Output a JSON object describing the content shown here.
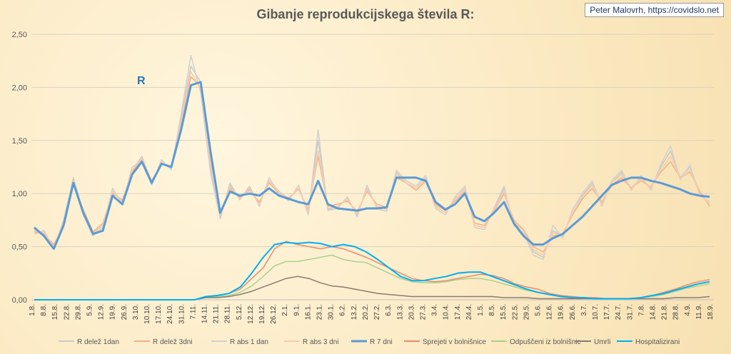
{
  "title": "Gibanje reprodukcijskega števila R:",
  "credit": "Peter Malovrh, https://covidslo.net",
  "chart_data": {
    "type": "line",
    "title": "Gibanje reprodukcijskega števila R:",
    "ylim": [
      0,
      2.5
    ],
    "y_ticks": [
      "0,00",
      "0,50",
      "1,00",
      "1,50",
      "2,00",
      "2,50"
    ],
    "x_ticks": [
      "1.8.",
      "8.8.",
      "15.8.",
      "22.8.",
      "29.8.",
      "5.9.",
      "12.9.",
      "19.9.",
      "26.9.",
      "3.10.",
      "10.10.",
      "17.10.",
      "24.10.",
      "31.10.",
      "7.11.",
      "14.11.",
      "21.11.",
      "28.11.",
      "5.12.",
      "12.12.",
      "19.12.",
      "26.12.",
      "2.1.",
      "9.1.",
      "16.1.",
      "23.1.",
      "30.1.",
      "6.2.",
      "13.2.",
      "20.2.",
      "27.2.",
      "6.3.",
      "13.3.",
      "20.3.",
      "27.3.",
      "3.4.",
      "10.4.",
      "17.4.",
      "24.4.",
      "1.5.",
      "8.5.",
      "15.5.",
      "22.5.",
      "29.5.",
      "5.6.",
      "12.6.",
      "19.6.",
      "26.6.",
      "3.7.",
      "10.7.",
      "17.7.",
      "24.7.",
      "31.7.",
      "7.8.",
      "14.8.",
      "21.8.",
      "28.8.",
      "4.9.",
      "11.9.",
      "18.9."
    ],
    "annotation": "R",
    "grid": true,
    "legend_position": "bottom",
    "series": [
      {
        "name": "R delež 1dan",
        "color": "#c9c9c9",
        "values": [
          0.62,
          0.65,
          0.48,
          0.75,
          1.15,
          0.82,
          0.62,
          0.7,
          1.02,
          0.92,
          1.22,
          1.35,
          1.1,
          1.3,
          1.25,
          1.72,
          2.2,
          2.05,
          1.25,
          0.78,
          1.08,
          0.95,
          1.05,
          0.9,
          1.12,
          1.02,
          0.95,
          1.05,
          0.82,
          1.5,
          0.85,
          0.88,
          0.95,
          0.8,
          1.05,
          0.88,
          0.85,
          1.2,
          1.1,
          1.05,
          1.15,
          0.88,
          0.82,
          0.95,
          1.05,
          0.7,
          0.68,
          0.85,
          1.05,
          0.72,
          0.65,
          0.45,
          0.4,
          0.65,
          0.6,
          0.82,
          0.98,
          1.1,
          0.9,
          1.1,
          1.2,
          1.05,
          1.15,
          1.05,
          1.25,
          1.4,
          1.15,
          1.25,
          1.0,
          0.9
        ]
      },
      {
        "name": "R delež 3dni",
        "color": "#f4b183",
        "values": [
          0.64,
          0.62,
          0.52,
          0.7,
          1.1,
          0.85,
          0.64,
          0.72,
          1.0,
          0.94,
          1.2,
          1.32,
          1.12,
          1.28,
          1.26,
          1.65,
          2.1,
          2.0,
          1.3,
          0.82,
          1.05,
          0.96,
          1.03,
          0.92,
          1.1,
          1.0,
          0.96,
          1.04,
          0.85,
          1.35,
          0.88,
          0.9,
          0.93,
          0.83,
          1.02,
          0.9,
          0.87,
          1.15,
          1.1,
          1.03,
          1.12,
          0.9,
          0.84,
          0.93,
          1.02,
          0.72,
          0.7,
          0.84,
          1.0,
          0.75,
          0.66,
          0.5,
          0.45,
          0.6,
          0.62,
          0.8,
          0.95,
          1.05,
          0.92,
          1.08,
          1.15,
          1.05,
          1.12,
          1.06,
          1.2,
          1.3,
          1.15,
          1.2,
          1.02,
          0.88
        ]
      },
      {
        "name": "R abs 1 dan",
        "color": "#d0d0d0",
        "values": [
          0.66,
          0.6,
          0.5,
          0.72,
          1.12,
          0.8,
          0.6,
          0.68,
          1.05,
          0.9,
          1.25,
          1.3,
          1.08,
          1.32,
          1.22,
          1.75,
          2.3,
          1.95,
          1.2,
          0.76,
          1.1,
          0.94,
          1.07,
          0.88,
          1.15,
          1.0,
          0.93,
          1.08,
          0.8,
          1.6,
          0.84,
          0.86,
          0.97,
          0.78,
          1.08,
          0.86,
          0.83,
          1.22,
          1.12,
          1.07,
          1.17,
          0.86,
          0.8,
          0.97,
          1.07,
          0.68,
          0.66,
          0.87,
          1.07,
          0.7,
          0.63,
          0.42,
          0.38,
          0.7,
          0.58,
          0.85,
          1.0,
          1.12,
          0.88,
          1.12,
          1.22,
          1.03,
          1.17,
          1.03,
          1.27,
          1.45,
          1.13,
          1.27,
          0.98,
          0.92
        ]
      },
      {
        "name": "R abs 3 dni",
        "color": "#f8cbad",
        "values": [
          0.65,
          0.63,
          0.5,
          0.73,
          1.12,
          0.83,
          0.63,
          0.7,
          1.02,
          0.92,
          1.22,
          1.33,
          1.1,
          1.3,
          1.24,
          1.68,
          2.15,
          1.98,
          1.28,
          0.8,
          1.07,
          0.95,
          1.04,
          0.9,
          1.12,
          1.01,
          0.95,
          1.05,
          0.83,
          1.4,
          0.86,
          0.88,
          0.95,
          0.81,
          1.04,
          0.88,
          0.85,
          1.18,
          1.1,
          1.05,
          1.14,
          0.88,
          0.82,
          0.95,
          1.04,
          0.7,
          0.68,
          0.85,
          1.02,
          0.73,
          0.65,
          0.47,
          0.42,
          0.63,
          0.6,
          0.82,
          0.97,
          1.08,
          0.9,
          1.1,
          1.18,
          1.04,
          1.14,
          1.05,
          1.22,
          1.35,
          1.14,
          1.22,
          1.0,
          0.9
        ]
      },
      {
        "name": "R 7 dni",
        "color": "#5b9bd5",
        "values": [
          0.68,
          0.6,
          0.48,
          0.7,
          1.1,
          0.82,
          0.62,
          0.65,
          0.98,
          0.9,
          1.18,
          1.3,
          1.1,
          1.28,
          1.25,
          1.6,
          2.02,
          2.05,
          1.4,
          0.82,
          1.02,
          0.98,
          1.0,
          0.98,
          1.05,
          0.98,
          0.95,
          0.92,
          0.9,
          1.12,
          0.9,
          0.86,
          0.85,
          0.84,
          0.86,
          0.86,
          0.87,
          1.15,
          1.15,
          1.15,
          1.12,
          0.92,
          0.85,
          0.9,
          1.0,
          0.78,
          0.74,
          0.82,
          0.92,
          0.72,
          0.6,
          0.52,
          0.52,
          0.58,
          0.62,
          0.7,
          0.78,
          0.88,
          0.98,
          1.08,
          1.12,
          1.15,
          1.15,
          1.12,
          1.1,
          1.07,
          1.04,
          1.0,
          0.98,
          0.97
        ]
      },
      {
        "name": "Sprejeti v bolnišnice",
        "color": "#e98b6c",
        "values": [
          0,
          0,
          0,
          0,
          0,
          0,
          0,
          0,
          0,
          0,
          0,
          0,
          0,
          0,
          0,
          0.03,
          0.04,
          0.06,
          0.1,
          0.2,
          0.3,
          0.48,
          0.55,
          0.52,
          0.5,
          0.48,
          0.5,
          0.48,
          0.44,
          0.4,
          0.35,
          0.3,
          0.25,
          0.2,
          0.18,
          0.17,
          0.18,
          0.2,
          0.22,
          0.24,
          0.23,
          0.2,
          0.15,
          0.12,
          0.1,
          0.06,
          0.04,
          0.03,
          0.02,
          0.02,
          0.01,
          0.01,
          0.01,
          0.02,
          0.04,
          0.07,
          0.1,
          0.14,
          0.17,
          0.19
        ]
      },
      {
        "name": "Odpuščeni iz bolnišnic",
        "color": "#a9d18e",
        "values": [
          0,
          0,
          0,
          0,
          0,
          0,
          0,
          0,
          0,
          0,
          0,
          0,
          0,
          0,
          0,
          0.02,
          0.03,
          0.04,
          0.07,
          0.13,
          0.22,
          0.32,
          0.36,
          0.36,
          0.38,
          0.4,
          0.42,
          0.38,
          0.36,
          0.35,
          0.3,
          0.25,
          0.2,
          0.17,
          0.16,
          0.16,
          0.17,
          0.19,
          0.2,
          0.2,
          0.18,
          0.15,
          0.12,
          0.09,
          0.07,
          0.05,
          0.03,
          0.02,
          0.02,
          0.01,
          0.01,
          0.01,
          0.01,
          0.02,
          0.03,
          0.05,
          0.08,
          0.11,
          0.13,
          0.15
        ]
      },
      {
        "name": "Umrli",
        "color": "#8c7b70",
        "values": [
          0,
          0,
          0,
          0,
          0,
          0,
          0,
          0,
          0,
          0,
          0,
          0,
          0,
          0,
          0,
          0.02,
          0.02,
          0.03,
          0.05,
          0.08,
          0.12,
          0.16,
          0.2,
          0.22,
          0.2,
          0.16,
          0.13,
          0.12,
          0.1,
          0.08,
          0.06,
          0.05,
          0.04,
          0.03,
          0.03,
          0.03,
          0.03,
          0.03,
          0.03,
          0.03,
          0.03,
          0.02,
          0.02,
          0.02,
          0.01,
          0.01,
          0.01,
          0.01,
          0.01,
          0.01,
          0.01,
          0.01,
          0.01,
          0.01,
          0.01,
          0.01,
          0.02,
          0.02,
          0.02,
          0.03
        ]
      },
      {
        "name": "Hospitalizirani",
        "color": "#00b0f0",
        "values": [
          0,
          0,
          0,
          0,
          0,
          0,
          0,
          0,
          0,
          0,
          0,
          0,
          0,
          0,
          0,
          0.03,
          0.04,
          0.06,
          0.12,
          0.25,
          0.4,
          0.52,
          0.54,
          0.53,
          0.54,
          0.53,
          0.5,
          0.52,
          0.5,
          0.45,
          0.38,
          0.3,
          0.22,
          0.18,
          0.18,
          0.2,
          0.22,
          0.25,
          0.26,
          0.26,
          0.22,
          0.18,
          0.14,
          0.1,
          0.07,
          0.05,
          0.03,
          0.02,
          0.02,
          0.01,
          0.01,
          0.01,
          0.01,
          0.02,
          0.04,
          0.06,
          0.09,
          0.12,
          0.15,
          0.17
        ]
      }
    ]
  }
}
